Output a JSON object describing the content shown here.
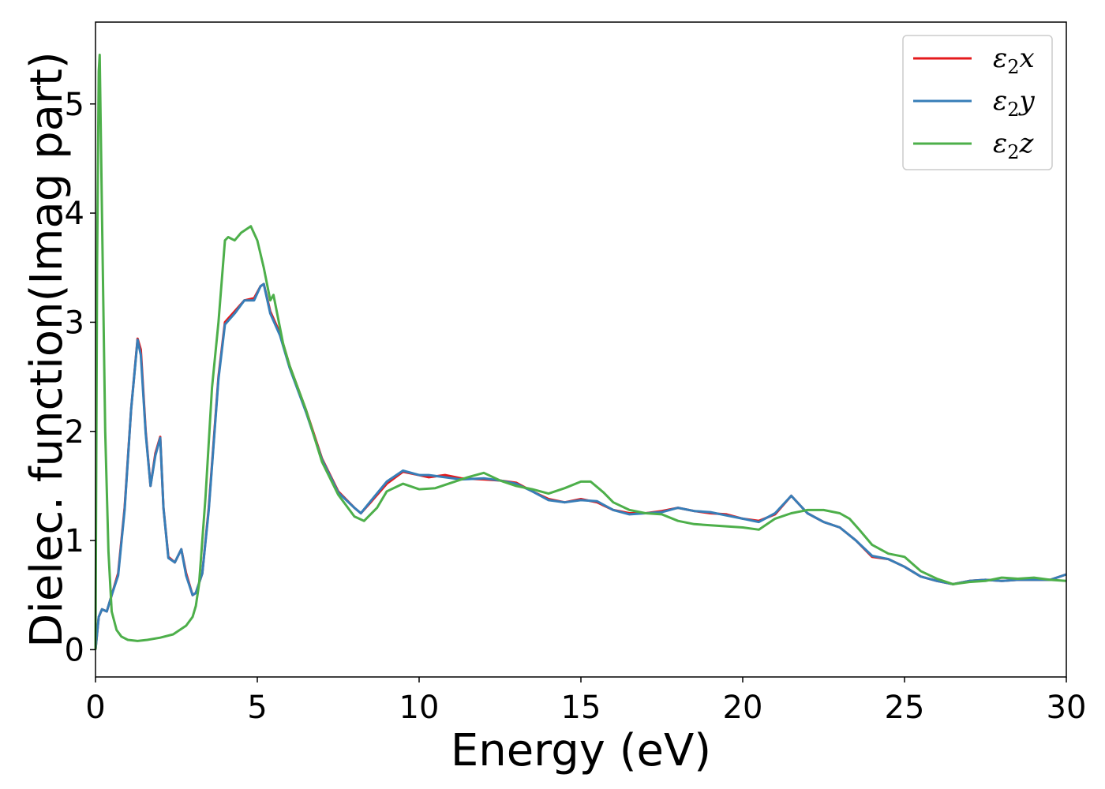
{
  "chart_data": {
    "type": "line",
    "title": "",
    "xlabel": "Energy (eV)",
    "ylabel": "Dielec. function(Imag part)",
    "xlim": [
      0,
      30
    ],
    "ylim": [
      -0.25,
      5.75
    ],
    "xticks": [
      0,
      5,
      10,
      15,
      20,
      25,
      30
    ],
    "yticks": [
      0,
      1,
      2,
      3,
      4,
      5
    ],
    "grid": false,
    "legend_position": "top-right",
    "series": [
      {
        "name": "ε₂x",
        "legend_base": "ε",
        "legend_sub": "2",
        "legend_suffix": "x",
        "color": "#e41a1c",
        "x": [
          0,
          0.1,
          0.2,
          0.35,
          0.5,
          0.7,
          0.9,
          1.1,
          1.3,
          1.4,
          1.55,
          1.7,
          1.85,
          2.0,
          2.1,
          2.25,
          2.45,
          2.65,
          2.8,
          3.0,
          3.1,
          3.3,
          3.5,
          3.8,
          4.0,
          4.3,
          4.6,
          4.9,
          5.1,
          5.2,
          5.4,
          5.7,
          6.0,
          6.5,
          7.0,
          7.5,
          8.0,
          8.2,
          8.5,
          9.0,
          9.5,
          10.0,
          10.3,
          10.8,
          11.3,
          12.0,
          12.5,
          13.0,
          13.5,
          14.0,
          14.5,
          15.0,
          15.5,
          16.0,
          16.5,
          17.0,
          17.5,
          18.0,
          18.5,
          19.0,
          19.5,
          20.0,
          20.5,
          21.0,
          21.5,
          22.0,
          22.5,
          23.0,
          23.5,
          24.0,
          24.5,
          25.0,
          25.5,
          26.0,
          26.5,
          27.0,
          27.5,
          28.0,
          28.5,
          29.0,
          29.5,
          30.0
        ],
        "values": [
          0.0,
          0.3,
          0.37,
          0.35,
          0.5,
          0.7,
          1.3,
          2.2,
          2.85,
          2.75,
          2.0,
          1.5,
          1.8,
          1.95,
          1.3,
          0.85,
          0.8,
          0.92,
          0.7,
          0.5,
          0.52,
          0.7,
          1.3,
          2.5,
          3.0,
          3.1,
          3.2,
          3.22,
          3.33,
          3.35,
          3.1,
          2.9,
          2.6,
          2.2,
          1.75,
          1.45,
          1.3,
          1.25,
          1.35,
          1.52,
          1.63,
          1.6,
          1.58,
          1.6,
          1.57,
          1.56,
          1.55,
          1.53,
          1.45,
          1.38,
          1.35,
          1.38,
          1.35,
          1.28,
          1.25,
          1.25,
          1.27,
          1.3,
          1.27,
          1.25,
          1.24,
          1.2,
          1.18,
          1.24,
          1.41,
          1.25,
          1.17,
          1.12,
          1.0,
          0.85,
          0.83,
          0.76,
          0.67,
          0.63,
          0.6,
          0.63,
          0.64,
          0.63,
          0.64,
          0.64,
          0.64,
          0.69
        ]
      },
      {
        "name": "ε₂y",
        "legend_base": "ε",
        "legend_sub": "2",
        "legend_suffix": "y",
        "color": "#377eb8",
        "x": [
          0,
          0.1,
          0.2,
          0.35,
          0.5,
          0.7,
          0.9,
          1.1,
          1.3,
          1.4,
          1.55,
          1.7,
          1.85,
          2.0,
          2.1,
          2.25,
          2.45,
          2.65,
          2.8,
          3.0,
          3.1,
          3.3,
          3.5,
          3.8,
          4.0,
          4.3,
          4.6,
          4.9,
          5.1,
          5.2,
          5.4,
          5.7,
          6.0,
          6.5,
          7.0,
          7.5,
          8.0,
          8.2,
          8.5,
          9.0,
          9.5,
          10.0,
          10.3,
          10.8,
          11.3,
          12.0,
          12.5,
          13.0,
          13.5,
          14.0,
          14.5,
          15.0,
          15.5,
          16.0,
          16.5,
          17.0,
          17.5,
          18.0,
          18.5,
          19.0,
          19.5,
          20.0,
          20.5,
          21.0,
          21.5,
          22.0,
          22.5,
          23.0,
          23.5,
          24.0,
          24.5,
          25.0,
          25.5,
          26.0,
          26.5,
          27.0,
          27.5,
          28.0,
          28.5,
          29.0,
          29.5,
          30.0
        ],
        "values": [
          0.0,
          0.3,
          0.37,
          0.35,
          0.5,
          0.68,
          1.28,
          2.2,
          2.84,
          2.7,
          1.98,
          1.5,
          1.78,
          1.94,
          1.3,
          0.84,
          0.8,
          0.92,
          0.68,
          0.5,
          0.52,
          0.7,
          1.28,
          2.48,
          2.98,
          3.08,
          3.2,
          3.2,
          3.33,
          3.35,
          3.08,
          2.88,
          2.58,
          2.18,
          1.74,
          1.44,
          1.3,
          1.25,
          1.36,
          1.54,
          1.64,
          1.6,
          1.6,
          1.58,
          1.56,
          1.57,
          1.55,
          1.52,
          1.45,
          1.37,
          1.35,
          1.37,
          1.36,
          1.28,
          1.24,
          1.25,
          1.26,
          1.3,
          1.27,
          1.26,
          1.23,
          1.2,
          1.17,
          1.25,
          1.41,
          1.25,
          1.17,
          1.12,
          1.0,
          0.86,
          0.83,
          0.76,
          0.67,
          0.63,
          0.6,
          0.63,
          0.64,
          0.63,
          0.64,
          0.64,
          0.64,
          0.69
        ]
      },
      {
        "name": "ε₂z",
        "legend_base": "ε",
        "legend_sub": "2",
        "legend_suffix": "z",
        "color": "#4daf4a",
        "x": [
          0,
          0.05,
          0.1,
          0.13,
          0.2,
          0.3,
          0.4,
          0.5,
          0.65,
          0.8,
          1.0,
          1.3,
          1.6,
          2.0,
          2.4,
          2.8,
          3.0,
          3.1,
          3.2,
          3.4,
          3.6,
          3.8,
          4.0,
          4.1,
          4.3,
          4.5,
          4.8,
          5.0,
          5.2,
          5.4,
          5.5,
          5.6,
          5.8,
          6.0,
          6.5,
          7.0,
          7.5,
          8.0,
          8.3,
          8.7,
          9.0,
          9.5,
          10.0,
          10.5,
          11.0,
          11.5,
          12.0,
          12.5,
          13.0,
          13.5,
          14.0,
          14.5,
          15.0,
          15.3,
          15.7,
          16.0,
          16.5,
          17.0,
          17.5,
          18.0,
          18.5,
          19.0,
          19.5,
          20.0,
          20.5,
          21.0,
          21.5,
          22.0,
          22.5,
          23.0,
          23.3,
          23.6,
          24.0,
          24.5,
          25.0,
          25.5,
          26.0,
          26.5,
          27.0,
          27.5,
          28.0,
          28.5,
          29.0,
          29.5,
          30.0
        ],
        "values": [
          0.0,
          3.5,
          5.3,
          5.45,
          4.0,
          2.0,
          0.9,
          0.35,
          0.18,
          0.12,
          0.09,
          0.08,
          0.09,
          0.11,
          0.14,
          0.22,
          0.3,
          0.4,
          0.6,
          1.4,
          2.4,
          3.0,
          3.75,
          3.78,
          3.75,
          3.82,
          3.88,
          3.75,
          3.5,
          3.2,
          3.25,
          3.1,
          2.8,
          2.6,
          2.2,
          1.72,
          1.42,
          1.22,
          1.18,
          1.3,
          1.45,
          1.52,
          1.47,
          1.48,
          1.53,
          1.58,
          1.62,
          1.55,
          1.5,
          1.47,
          1.43,
          1.48,
          1.54,
          1.54,
          1.44,
          1.35,
          1.28,
          1.25,
          1.24,
          1.18,
          1.15,
          1.14,
          1.13,
          1.12,
          1.1,
          1.2,
          1.25,
          1.28,
          1.28,
          1.25,
          1.2,
          1.1,
          0.96,
          0.88,
          0.85,
          0.72,
          0.65,
          0.6,
          0.62,
          0.63,
          0.66,
          0.65,
          0.66,
          0.64,
          0.63
        ]
      }
    ]
  }
}
